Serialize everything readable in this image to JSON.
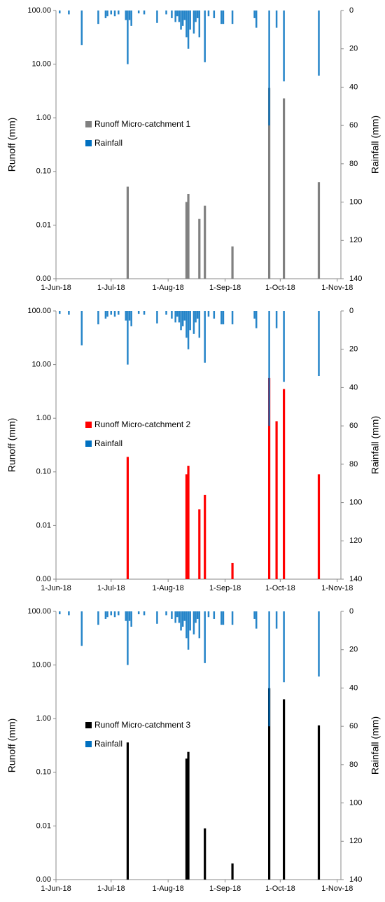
{
  "chart_data": [
    {
      "type": "bar",
      "yscale": "log",
      "y2_inverted": true,
      "legend": "center-left",
      "ylabel": "Runoff (mm)",
      "y2label": "Rainfall (mm)",
      "xlim": [
        "2018-06-01",
        "2018-11-03"
      ],
      "xticks": [
        {
          "value": "2018-06-01",
          "label": "1-Jun-18"
        },
        {
          "value": "2018-07-01",
          "label": "1-Jul-18"
        },
        {
          "value": "2018-08-01",
          "label": "1-Aug-18"
        },
        {
          "value": "2018-09-01",
          "label": "1-Sep-18"
        },
        {
          "value": "2018-10-01",
          "label": "1-Oct-18"
        },
        {
          "value": "2018-11-01",
          "label": "1-Nov-18"
        }
      ],
      "ylim": [
        0.001,
        100
      ],
      "yticks": [
        {
          "value": 0.001,
          "label": "0.00"
        },
        {
          "value": 0.01,
          "label": "0.01"
        },
        {
          "value": 0.1,
          "label": "0.10"
        },
        {
          "value": 1,
          "label": "1.00"
        },
        {
          "value": 10,
          "label": "10.00"
        },
        {
          "value": 100,
          "label": "100.00"
        }
      ],
      "y2lim": [
        0,
        140
      ],
      "y2ticks": [
        0,
        20,
        40,
        60,
        80,
        100,
        120,
        140
      ],
      "series": [
        {
          "name": "Runoff Micro-catchment 1",
          "color": "#808080",
          "x": [
            "2018-07-10",
            "2018-08-11",
            "2018-08-12",
            "2018-08-18",
            "2018-08-21",
            "2018-09-05",
            "2018-09-25",
            "2018-10-03",
            "2018-10-22"
          ],
          "values": [
            0.052,
            0.027,
            0.038,
            0.013,
            0.023,
            0.004,
            3.6,
            2.3,
            0.063
          ]
        },
        {
          "name": "Rainfall",
          "color": "#0070c0",
          "axis": "y2",
          "x": [
            "2018-06-03",
            "2018-06-08",
            "2018-06-15",
            "2018-06-24",
            "2018-06-28",
            "2018-06-29",
            "2018-07-01",
            "2018-07-03",
            "2018-07-05",
            "2018-07-09",
            "2018-07-10",
            "2018-07-11",
            "2018-07-12",
            "2018-07-16",
            "2018-07-19",
            "2018-07-26",
            "2018-07-31",
            "2018-08-03",
            "2018-08-05",
            "2018-08-06",
            "2018-08-07",
            "2018-08-08",
            "2018-08-09",
            "2018-08-10",
            "2018-08-11",
            "2018-08-12",
            "2018-08-13",
            "2018-08-15",
            "2018-08-16",
            "2018-08-17",
            "2018-08-18",
            "2018-08-21",
            "2018-08-23",
            "2018-08-26",
            "2018-08-30",
            "2018-08-31",
            "2018-09-05",
            "2018-09-17",
            "2018-09-18",
            "2018-09-25",
            "2018-09-29",
            "2018-10-03",
            "2018-10-22"
          ],
          "values": [
            1.5,
            2,
            18,
            7,
            4,
            3,
            2,
            3,
            2,
            5,
            28,
            5,
            8,
            1.5,
            2,
            6.5,
            2,
            4,
            6,
            3,
            6,
            10,
            8,
            5,
            14,
            20,
            10,
            12,
            6,
            4,
            14,
            27,
            3,
            4,
            7,
            7,
            7,
            4,
            9,
            60,
            9,
            37,
            34
          ]
        }
      ]
    },
    {
      "type": "bar",
      "yscale": "log",
      "y2_inverted": true,
      "legend": "center-left",
      "ylabel": "Runoff (mm)",
      "y2label": "Rainfall (mm)",
      "xlim": [
        "2018-06-01",
        "2018-11-03"
      ],
      "xticks": [
        {
          "value": "2018-06-01",
          "label": "1-Jun-18"
        },
        {
          "value": "2018-07-01",
          "label": "1-Jul-18"
        },
        {
          "value": "2018-08-01",
          "label": "1-Aug-18"
        },
        {
          "value": "2018-09-01",
          "label": "1-Sep-18"
        },
        {
          "value": "2018-10-01",
          "label": "1-Oct-18"
        },
        {
          "value": "2018-11-01",
          "label": "1-Nov-18"
        }
      ],
      "ylim": [
        0.001,
        100
      ],
      "yticks": [
        {
          "value": 0.001,
          "label": "0.00"
        },
        {
          "value": 0.01,
          "label": "0.01"
        },
        {
          "value": 0.1,
          "label": "0.10"
        },
        {
          "value": 1,
          "label": "1.00"
        },
        {
          "value": 10,
          "label": "10.00"
        },
        {
          "value": 100,
          "label": "100.00"
        }
      ],
      "y2lim": [
        0,
        140
      ],
      "y2ticks": [
        0,
        20,
        40,
        60,
        80,
        100,
        120,
        140
      ],
      "series": [
        {
          "name": "Runoff Micro-catchment 2",
          "color": "#ff0000",
          "x": [
            "2018-07-10",
            "2018-08-11",
            "2018-08-12",
            "2018-08-18",
            "2018-08-21",
            "2018-09-05",
            "2018-09-25",
            "2018-09-29",
            "2018-10-03",
            "2018-10-22"
          ],
          "values": [
            0.19,
            0.09,
            0.13,
            0.02,
            0.037,
            0.002,
            5.6,
            0.88,
            3.5,
            0.09
          ]
        },
        {
          "name": "Rainfall",
          "color": "#0070c0",
          "axis": "y2",
          "x": [
            "2018-06-03",
            "2018-06-08",
            "2018-06-15",
            "2018-06-24",
            "2018-06-28",
            "2018-06-29",
            "2018-07-01",
            "2018-07-03",
            "2018-07-05",
            "2018-07-09",
            "2018-07-10",
            "2018-07-11",
            "2018-07-12",
            "2018-07-16",
            "2018-07-19",
            "2018-07-26",
            "2018-07-31",
            "2018-08-03",
            "2018-08-05",
            "2018-08-06",
            "2018-08-07",
            "2018-08-08",
            "2018-08-09",
            "2018-08-10",
            "2018-08-11",
            "2018-08-12",
            "2018-08-13",
            "2018-08-15",
            "2018-08-16",
            "2018-08-17",
            "2018-08-18",
            "2018-08-21",
            "2018-08-23",
            "2018-08-26",
            "2018-08-30",
            "2018-08-31",
            "2018-09-05",
            "2018-09-17",
            "2018-09-18",
            "2018-09-25",
            "2018-09-29",
            "2018-10-03",
            "2018-10-22"
          ],
          "values": [
            1.5,
            2,
            18,
            7,
            4,
            3,
            2,
            3,
            2,
            5,
            28,
            5,
            8,
            1.5,
            2,
            6.5,
            2,
            4,
            6,
            3,
            6,
            10,
            8,
            5,
            14,
            20,
            10,
            12,
            6,
            4,
            14,
            27,
            3,
            4,
            7,
            7,
            7,
            4,
            9,
            60,
            9,
            37,
            34
          ]
        }
      ]
    },
    {
      "type": "bar",
      "yscale": "log",
      "y2_inverted": true,
      "legend": "center-left",
      "ylabel": "Runoff (mm)",
      "y2label": "Rainfall (mm)",
      "xlim": [
        "2018-06-01",
        "2018-11-03"
      ],
      "xticks": [
        {
          "value": "2018-06-01",
          "label": "1-Jun-18"
        },
        {
          "value": "2018-07-01",
          "label": "1-Jul-18"
        },
        {
          "value": "2018-08-01",
          "label": "1-Aug-18"
        },
        {
          "value": "2018-09-01",
          "label": "1-Sep-18"
        },
        {
          "value": "2018-10-01",
          "label": "1-Oct-18"
        },
        {
          "value": "2018-11-01",
          "label": "1-Nov-18"
        }
      ],
      "ylim": [
        0.001,
        100
      ],
      "yticks": [
        {
          "value": 0.001,
          "label": "0.00"
        },
        {
          "value": 0.01,
          "label": "0.01"
        },
        {
          "value": 0.1,
          "label": "0.10"
        },
        {
          "value": 1,
          "label": "1.00"
        },
        {
          "value": 10,
          "label": "10.00"
        },
        {
          "value": 100,
          "label": "100.00"
        }
      ],
      "y2lim": [
        0,
        140
      ],
      "y2ticks": [
        0,
        20,
        40,
        60,
        80,
        100,
        120,
        140
      ],
      "series": [
        {
          "name": "Runoff Micro-catchment 3",
          "color": "#000000",
          "x": [
            "2018-07-10",
            "2018-08-11",
            "2018-08-12",
            "2018-08-21",
            "2018-09-05",
            "2018-09-25",
            "2018-10-03",
            "2018-10-22"
          ],
          "values": [
            0.36,
            0.18,
            0.24,
            0.009,
            0.002,
            3.7,
            2.3,
            0.75
          ]
        },
        {
          "name": "Rainfall",
          "color": "#0070c0",
          "axis": "y2",
          "x": [
            "2018-06-03",
            "2018-06-08",
            "2018-06-15",
            "2018-06-24",
            "2018-06-28",
            "2018-06-29",
            "2018-07-01",
            "2018-07-03",
            "2018-07-05",
            "2018-07-09",
            "2018-07-10",
            "2018-07-11",
            "2018-07-12",
            "2018-07-16",
            "2018-07-19",
            "2018-07-26",
            "2018-07-31",
            "2018-08-03",
            "2018-08-05",
            "2018-08-06",
            "2018-08-07",
            "2018-08-08",
            "2018-08-09",
            "2018-08-10",
            "2018-08-11",
            "2018-08-12",
            "2018-08-13",
            "2018-08-15",
            "2018-08-16",
            "2018-08-17",
            "2018-08-18",
            "2018-08-21",
            "2018-08-23",
            "2018-08-26",
            "2018-08-30",
            "2018-08-31",
            "2018-09-05",
            "2018-09-17",
            "2018-09-18",
            "2018-09-25",
            "2018-09-29",
            "2018-10-03",
            "2018-10-22"
          ],
          "values": [
            1.5,
            2,
            18,
            7,
            4,
            3,
            2,
            3,
            2,
            5,
            28,
            5,
            8,
            1.5,
            2,
            6.5,
            2,
            4,
            6,
            3,
            6,
            10,
            8,
            5,
            14,
            20,
            10,
            12,
            6,
            4,
            14,
            27,
            3,
            4,
            7,
            7,
            7,
            4,
            9,
            60,
            9,
            37,
            34
          ]
        }
      ]
    }
  ]
}
